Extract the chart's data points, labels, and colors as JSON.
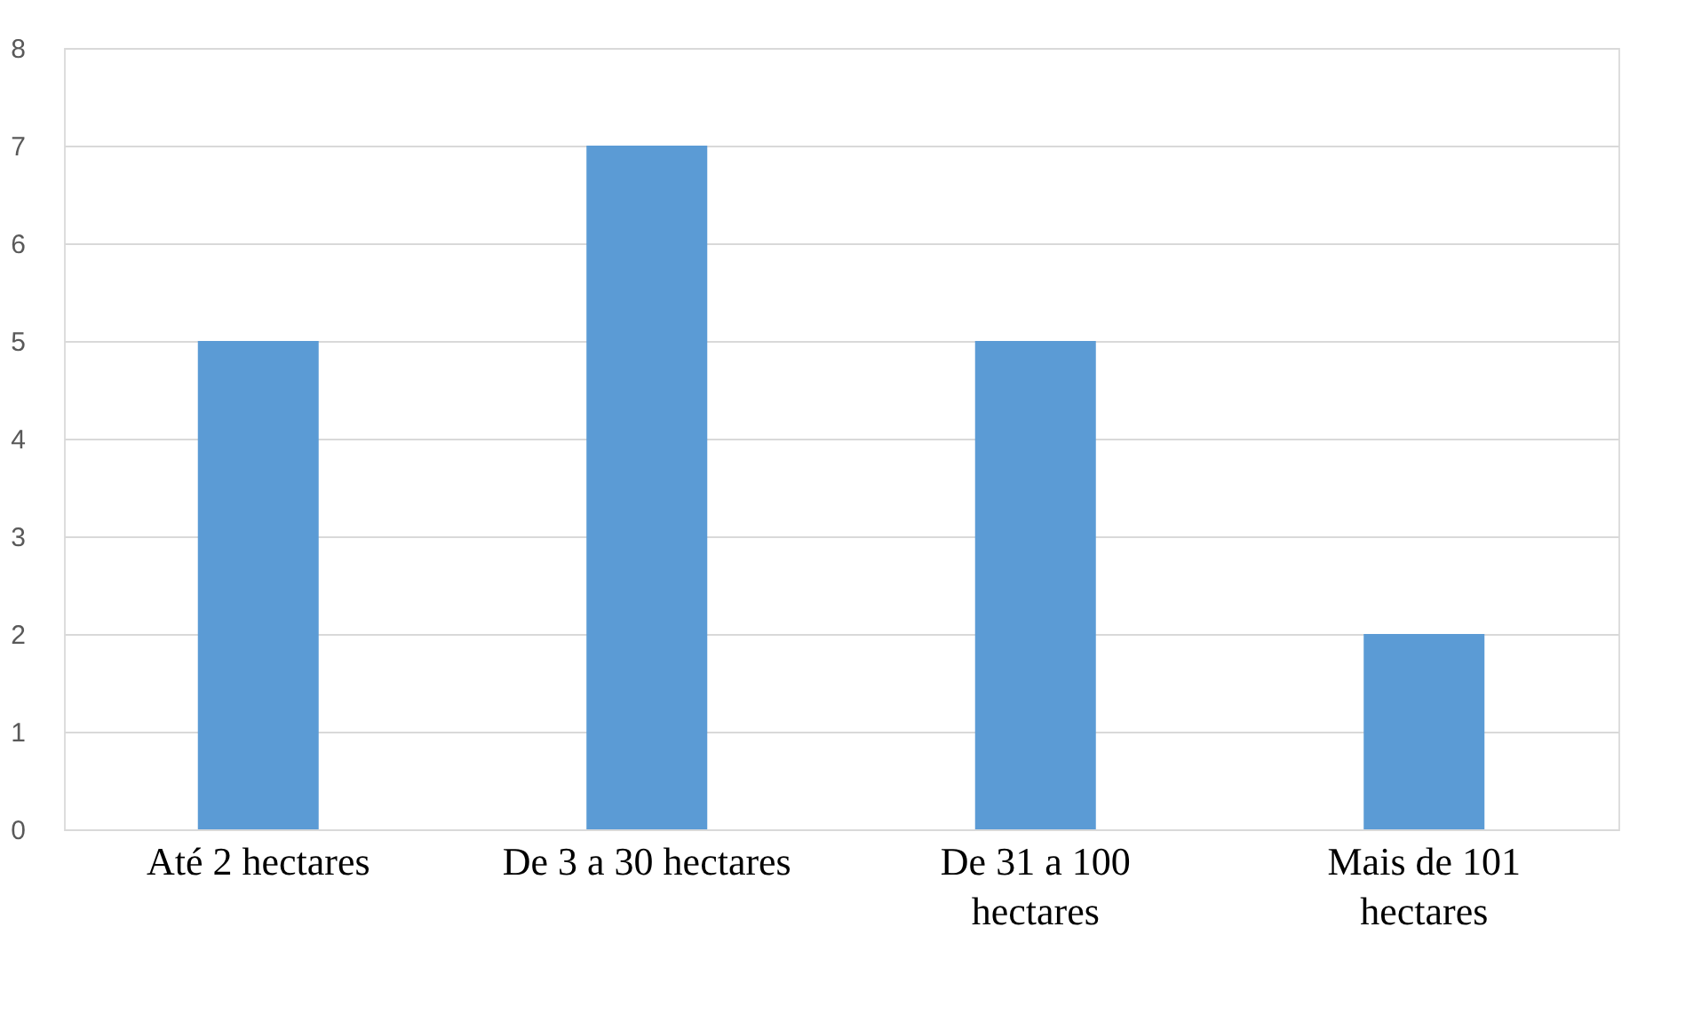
{
  "chart_data": {
    "type": "bar",
    "categories": [
      "Até 2 hectares",
      "De 3 a 30 hectares",
      "De 31 a 100 hectares",
      "Mais de 101 hectares"
    ],
    "values": [
      5,
      7,
      5,
      2
    ],
    "color": "#5b9bd5",
    "ylim": [
      0,
      8
    ],
    "yticks": [
      0,
      1,
      2,
      3,
      4,
      5,
      6,
      7,
      8
    ],
    "grid": "y"
  }
}
